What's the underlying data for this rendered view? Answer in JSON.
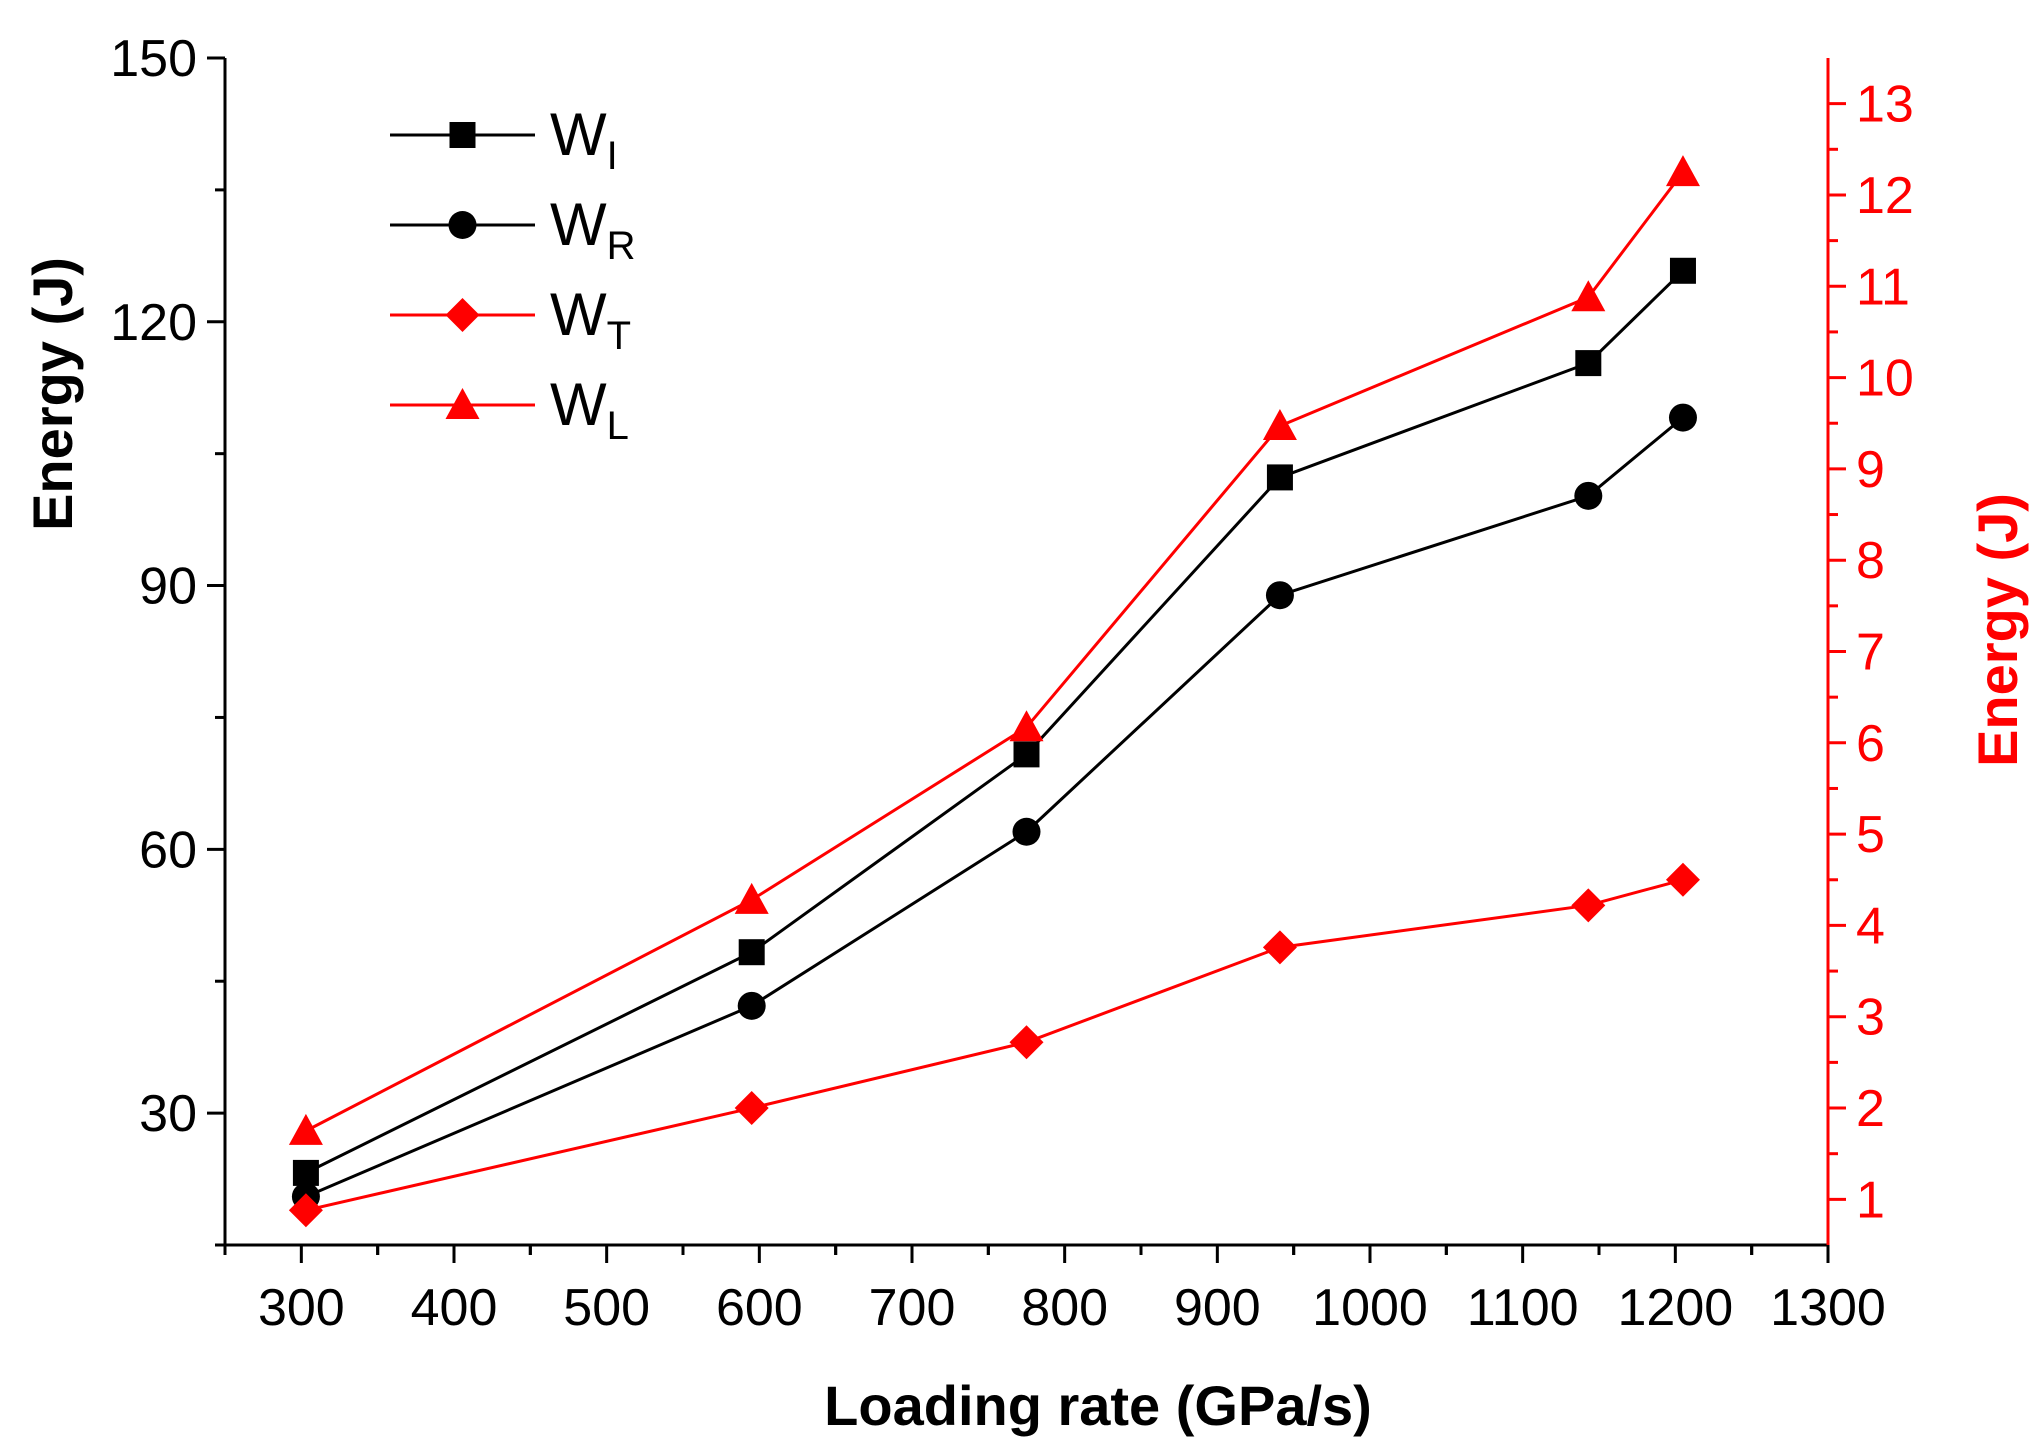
{
  "chart_data": {
    "type": "line",
    "title": "",
    "xlabel": "Loading rate (GPa/s)",
    "ylabel_left": "Energy (J)",
    "ylabel_right": "Energy (J)",
    "xlim": [
      250,
      1300
    ],
    "ylim_left": [
      15,
      150
    ],
    "ylim_right": [
      0.5,
      13.5
    ],
    "x_ticks": [
      300,
      400,
      500,
      600,
      700,
      800,
      900,
      1000,
      1100,
      1200,
      1300
    ],
    "y_left_ticks": [
      30,
      60,
      90,
      120,
      150
    ],
    "y_right_ticks": [
      1,
      2,
      3,
      4,
      5,
      6,
      7,
      8,
      9,
      10,
      11,
      12,
      13
    ],
    "legend_position": "top-left",
    "grid": false,
    "colors": {
      "black": "#000000",
      "red": "#ff0000"
    },
    "series": [
      {
        "name": "W",
        "sub": "I",
        "axis": "left",
        "color": "#000000",
        "marker": "square",
        "x": [
          303,
          595,
          775,
          941,
          1143,
          1205
        ],
        "values": [
          23.2,
          48.3,
          70.8,
          102.3,
          115.3,
          125.8
        ]
      },
      {
        "name": "W",
        "sub": "R",
        "axis": "left",
        "color": "#000000",
        "marker": "circle",
        "x": [
          303,
          595,
          775,
          941,
          1143,
          1205
        ],
        "values": [
          20.5,
          42.2,
          62.0,
          88.9,
          100.2,
          109.1
        ]
      },
      {
        "name": "W",
        "sub": "T",
        "axis": "right",
        "color": "#ff0000",
        "marker": "diamond",
        "x": [
          303,
          595,
          775,
          941,
          1143,
          1205
        ],
        "values": [
          0.88,
          2.0,
          2.72,
          3.76,
          4.22,
          4.5
        ]
      },
      {
        "name": "W",
        "sub": "L",
        "axis": "right",
        "color": "#ff0000",
        "marker": "triangle",
        "x": [
          303,
          595,
          775,
          941,
          1143,
          1205
        ],
        "values": [
          1.75,
          4.28,
          6.17,
          9.47,
          10.88,
          12.25
        ]
      }
    ]
  }
}
